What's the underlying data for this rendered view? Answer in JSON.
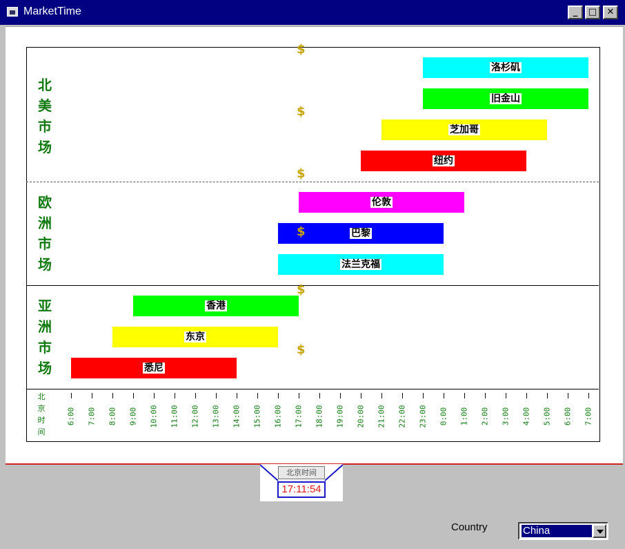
{
  "window": {
    "title": "MarketTime",
    "minimize": "_",
    "maximize": "□",
    "close": "✕"
  },
  "regions": [
    {
      "label": "北美市场"
    },
    {
      "label": "欧洲市场"
    },
    {
      "label": "亚洲市场"
    }
  ],
  "markets": [
    {
      "name": "洛杉矶",
      "region": "北美市场",
      "start": "23:00",
      "end": "7:00",
      "color": "#00ffff"
    },
    {
      "name": "旧金山",
      "region": "北美市场",
      "start": "23:00",
      "end": "7:00",
      "color": "#00ff00"
    },
    {
      "name": "芝加哥",
      "region": "北美市场",
      "start": "21:00",
      "end": "5:00",
      "color": "#ffff00"
    },
    {
      "name": "纽约",
      "region": "北美市场",
      "start": "20:00",
      "end": "4:00",
      "color": "#ff0000"
    },
    {
      "name": "伦敦",
      "region": "欧洲市场",
      "start": "17:00",
      "end": "1:00",
      "color": "#ff00ff"
    },
    {
      "name": "巴黎",
      "region": "欧洲市场",
      "start": "16:00",
      "end": "0:00",
      "color": "#0000ff"
    },
    {
      "name": "法兰克福",
      "region": "欧洲市场",
      "start": "16:00",
      "end": "0:00",
      "color": "#00ffff"
    },
    {
      "name": "香港",
      "region": "亚洲市场",
      "start": "9:00",
      "end": "17:00",
      "color": "#00ff00"
    },
    {
      "name": "东京",
      "region": "亚洲市场",
      "start": "8:00",
      "end": "16:00",
      "color": "#ffff00"
    },
    {
      "name": "悉尼",
      "region": "亚洲市场",
      "start": "6:00",
      "end": "14:00",
      "color": "#ff0000"
    }
  ],
  "axis": {
    "title": "北京时间",
    "ticks": [
      "6:00",
      "7:00",
      "8:00",
      "9:00",
      "10:00",
      "11:00",
      "12:00",
      "13:00",
      "14:00",
      "15:00",
      "16:00",
      "17:00",
      "18:00",
      "19:00",
      "20:00",
      "21:00",
      "22:00",
      "23:00",
      "0:00",
      "1:00",
      "2:00",
      "3:00",
      "4:00",
      "5:00",
      "6:00",
      "7:00"
    ]
  },
  "current_time_marker": {
    "symbol": "$",
    "time": "17:00"
  },
  "clock": {
    "button_label": "北京时间",
    "time": "17:11:54"
  },
  "country": {
    "label": "Country",
    "value": "China"
  }
}
